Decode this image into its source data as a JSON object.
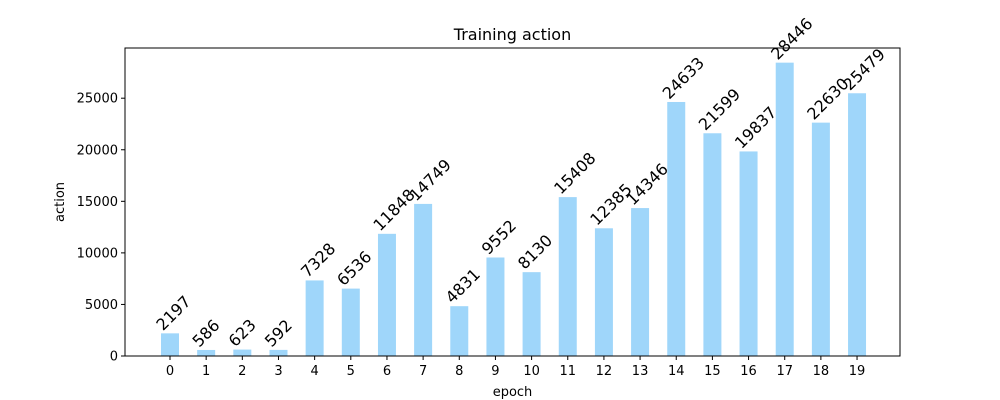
{
  "chart_data": {
    "type": "bar",
    "title": "Training action",
    "xlabel": "epoch",
    "ylabel": "action",
    "categories": [
      "0",
      "1",
      "2",
      "3",
      "4",
      "5",
      "6",
      "7",
      "8",
      "9",
      "10",
      "11",
      "12",
      "13",
      "14",
      "15",
      "16",
      "17",
      "18",
      "19"
    ],
    "values": [
      2197,
      586,
      623,
      592,
      7328,
      6536,
      11848,
      14749,
      4831,
      9552,
      8130,
      15408,
      12385,
      14346,
      24633,
      21599,
      19837,
      28446,
      22630,
      25479
    ],
    "yticks": [
      0,
      5000,
      10000,
      15000,
      20000,
      25000
    ],
    "ylim": [
      0,
      29868
    ],
    "bar_color": "#9fd6fa",
    "grid": false,
    "legend": "none"
  }
}
